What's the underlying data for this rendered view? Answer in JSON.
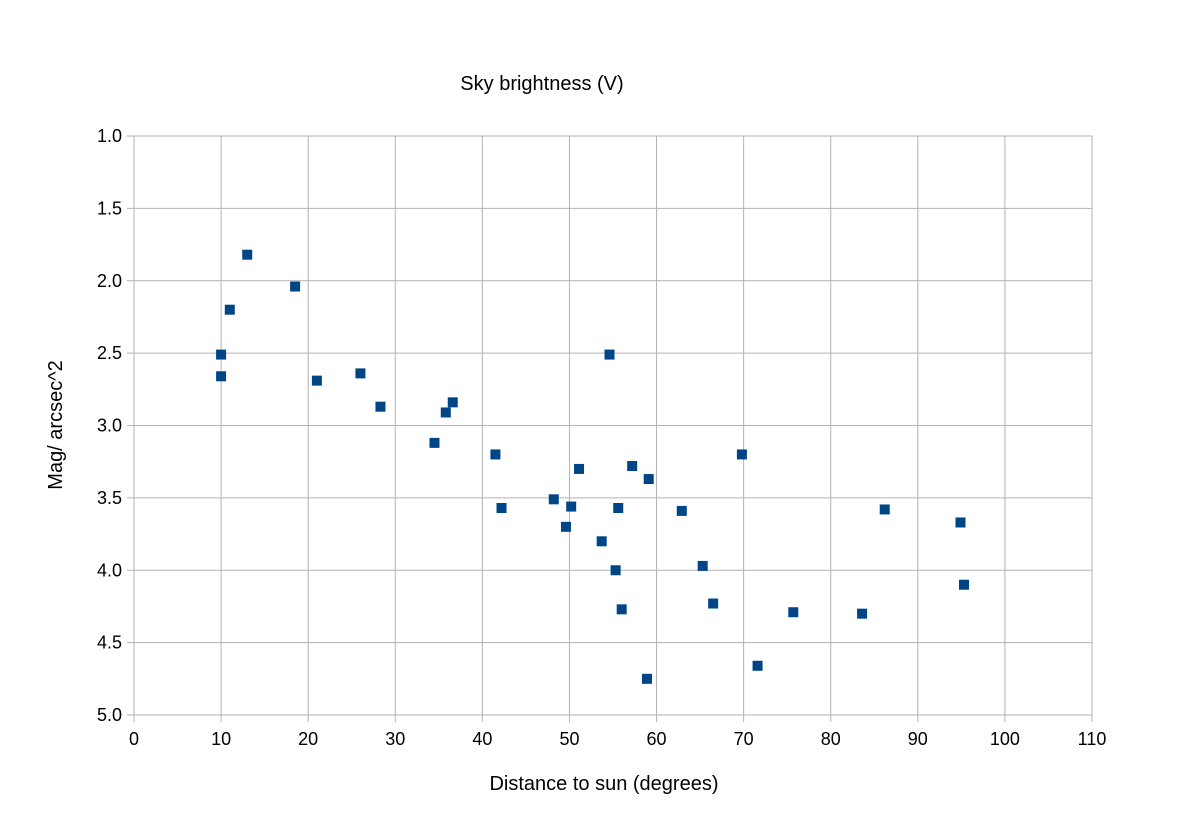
{
  "chart_data": {
    "type": "scatter",
    "title": "Sky brightness (V)",
    "xlabel": "Distance to sun (degrees)",
    "ylabel": "Mag/ arcsec^2",
    "xlim": [
      0,
      110
    ],
    "ylim": [
      1.0,
      5.0
    ],
    "y_inverted": true,
    "grid": true,
    "legend": "none",
    "x_ticks": [
      "0",
      "10",
      "20",
      "30",
      "40",
      "50",
      "60",
      "70",
      "80",
      "90",
      "100",
      "110"
    ],
    "y_ticks": [
      "1.0",
      "1.5",
      "2.0",
      "2.5",
      "3.0",
      "3.5",
      "4.0",
      "4.5",
      "5.0"
    ],
    "marker_color": "#004586",
    "grid_color": "#b3b3b3",
    "series": [
      {
        "points": [
          [
            10.0,
            2.51
          ],
          [
            10.0,
            2.66
          ],
          [
            11.0,
            2.2
          ],
          [
            13.0,
            1.82
          ],
          [
            18.5,
            2.04
          ],
          [
            21.0,
            2.69
          ],
          [
            26.0,
            2.64
          ],
          [
            28.3,
            2.87
          ],
          [
            34.5,
            3.12
          ],
          [
            35.8,
            2.91
          ],
          [
            36.6,
            2.84
          ],
          [
            41.5,
            3.2
          ],
          [
            42.2,
            3.57
          ],
          [
            48.2,
            3.51
          ],
          [
            49.6,
            3.7
          ],
          [
            50.2,
            3.56
          ],
          [
            51.1,
            3.3
          ],
          [
            53.7,
            3.8
          ],
          [
            54.6,
            2.51
          ],
          [
            55.3,
            4.0
          ],
          [
            55.6,
            3.57
          ],
          [
            56.0,
            4.27
          ],
          [
            57.2,
            3.28
          ],
          [
            58.9,
            4.75
          ],
          [
            59.1,
            3.37
          ],
          [
            62.9,
            3.59
          ],
          [
            65.3,
            3.97
          ],
          [
            66.5,
            4.23
          ],
          [
            69.8,
            3.2
          ],
          [
            71.6,
            4.66
          ],
          [
            75.7,
            4.29
          ],
          [
            83.6,
            4.3
          ],
          [
            86.2,
            3.58
          ],
          [
            94.9,
            3.67
          ],
          [
            95.3,
            4.1
          ]
        ]
      }
    ]
  }
}
